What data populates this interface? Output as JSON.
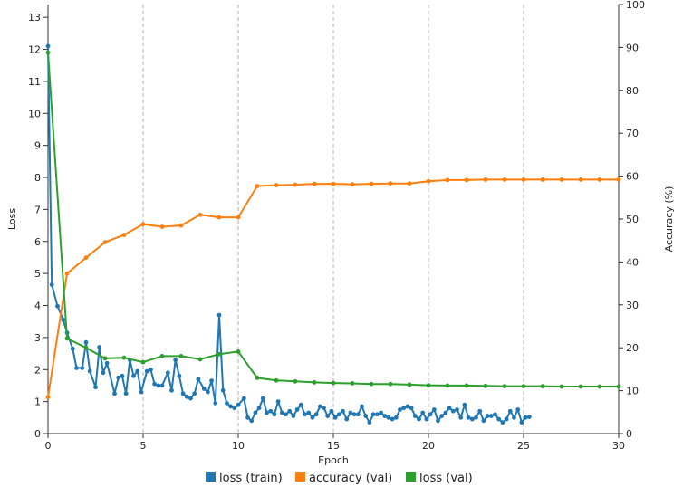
{
  "chart_data": {
    "type": "line",
    "xlabel": "Epoch",
    "ylabel": "Loss",
    "y2label": "Accuracy (%)",
    "xlim": [
      0,
      30
    ],
    "ylim": [
      0,
      13.4
    ],
    "y2lim": [
      0,
      100
    ],
    "x_ticks": [
      0,
      5,
      10,
      15,
      20,
      25,
      30
    ],
    "y_ticks": [
      0,
      1,
      2,
      3,
      4,
      5,
      6,
      7,
      8,
      9,
      10,
      11,
      12,
      13
    ],
    "y2_ticks": [
      0,
      10,
      20,
      30,
      40,
      50,
      60,
      70,
      80,
      90,
      100
    ],
    "grid": "vertical dashed lines at major x ticks",
    "legend": "bottom-center",
    "series": [
      {
        "name": "loss (train)",
        "axis": "left",
        "color": "#1f77b4",
        "values": [
          [
            0,
            12.1
          ],
          [
            0.2,
            4.65
          ],
          [
            0.5,
            3.98
          ],
          [
            0.8,
            3.55
          ],
          [
            1.0,
            3.15
          ],
          [
            1.3,
            2.65
          ],
          [
            1.5,
            2.05
          ],
          [
            1.8,
            2.05
          ],
          [
            2.0,
            2.85
          ],
          [
            2.2,
            1.95
          ],
          [
            2.5,
            1.45
          ],
          [
            2.7,
            2.7
          ],
          [
            2.9,
            1.9
          ],
          [
            3.1,
            2.2
          ],
          [
            3.5,
            1.25
          ],
          [
            3.7,
            1.75
          ],
          [
            3.9,
            1.8
          ],
          [
            4.1,
            1.25
          ],
          [
            4.3,
            2.3
          ],
          [
            4.5,
            1.8
          ],
          [
            4.7,
            1.95
          ],
          [
            4.9,
            1.3
          ],
          [
            5.2,
            1.95
          ],
          [
            5.4,
            2.0
          ],
          [
            5.6,
            1.55
          ],
          [
            5.8,
            1.5
          ],
          [
            6.0,
            1.5
          ],
          [
            6.3,
            1.9
          ],
          [
            6.5,
            1.35
          ],
          [
            6.7,
            2.3
          ],
          [
            6.9,
            1.8
          ],
          [
            7.1,
            1.25
          ],
          [
            7.3,
            1.15
          ],
          [
            7.5,
            1.1
          ],
          [
            7.7,
            1.25
          ],
          [
            7.9,
            1.7
          ],
          [
            8.2,
            1.4
          ],
          [
            8.4,
            1.3
          ],
          [
            8.6,
            1.65
          ],
          [
            8.8,
            0.95
          ],
          [
            9.0,
            3.7
          ],
          [
            9.2,
            1.35
          ],
          [
            9.4,
            0.95
          ],
          [
            9.6,
            0.85
          ],
          [
            9.8,
            0.8
          ],
          [
            10.0,
            0.9
          ],
          [
            10.3,
            1.1
          ],
          [
            10.5,
            0.5
          ],
          [
            10.7,
            0.4
          ],
          [
            10.9,
            0.65
          ],
          [
            11.1,
            0.8
          ],
          [
            11.3,
            1.1
          ],
          [
            11.5,
            0.65
          ],
          [
            11.7,
            0.7
          ],
          [
            11.9,
            0.6
          ],
          [
            12.1,
            1.0
          ],
          [
            12.3,
            0.65
          ],
          [
            12.5,
            0.6
          ],
          [
            12.7,
            0.7
          ],
          [
            12.9,
            0.55
          ],
          [
            13.1,
            0.75
          ],
          [
            13.3,
            0.9
          ],
          [
            13.5,
            0.6
          ],
          [
            13.7,
            0.65
          ],
          [
            13.9,
            0.5
          ],
          [
            14.1,
            0.6
          ],
          [
            14.3,
            0.85
          ],
          [
            14.5,
            0.8
          ],
          [
            14.7,
            0.55
          ],
          [
            14.9,
            0.7
          ],
          [
            15.1,
            0.5
          ],
          [
            15.3,
            0.6
          ],
          [
            15.5,
            0.7
          ],
          [
            15.7,
            0.45
          ],
          [
            15.9,
            0.65
          ],
          [
            16.1,
            0.6
          ],
          [
            16.3,
            0.6
          ],
          [
            16.5,
            0.85
          ],
          [
            16.7,
            0.55
          ],
          [
            16.9,
            0.35
          ],
          [
            17.1,
            0.6
          ],
          [
            17.3,
            0.6
          ],
          [
            17.5,
            0.65
          ],
          [
            17.7,
            0.55
          ],
          [
            17.9,
            0.5
          ],
          [
            18.1,
            0.45
          ],
          [
            18.3,
            0.5
          ],
          [
            18.5,
            0.75
          ],
          [
            18.7,
            0.8
          ],
          [
            18.9,
            0.85
          ],
          [
            19.1,
            0.8
          ],
          [
            19.3,
            0.55
          ],
          [
            19.5,
            0.45
          ],
          [
            19.7,
            0.65
          ],
          [
            19.9,
            0.45
          ],
          [
            20.1,
            0.6
          ],
          [
            20.3,
            0.75
          ],
          [
            20.5,
            0.4
          ],
          [
            20.7,
            0.55
          ],
          [
            20.9,
            0.65
          ],
          [
            21.1,
            0.8
          ],
          [
            21.3,
            0.7
          ],
          [
            21.5,
            0.75
          ],
          [
            21.7,
            0.5
          ],
          [
            21.9,
            0.9
          ],
          [
            22.1,
            0.5
          ],
          [
            22.3,
            0.45
          ],
          [
            22.5,
            0.5
          ],
          [
            22.7,
            0.7
          ],
          [
            22.9,
            0.4
          ],
          [
            23.1,
            0.55
          ],
          [
            23.3,
            0.55
          ],
          [
            23.5,
            0.6
          ],
          [
            23.7,
            0.45
          ],
          [
            23.9,
            0.35
          ],
          [
            24.1,
            0.45
          ],
          [
            24.3,
            0.7
          ],
          [
            24.5,
            0.5
          ],
          [
            24.7,
            0.75
          ],
          [
            24.9,
            0.35
          ],
          [
            25.1,
            0.5
          ],
          [
            25.3,
            0.52
          ]
        ]
      },
      {
        "name": "accuracy (val)",
        "axis": "right",
        "color": "#ff7f0e",
        "values": [
          [
            0,
            8.5
          ],
          [
            1,
            37.3
          ],
          [
            2,
            41.0
          ],
          [
            3,
            44.6
          ],
          [
            4,
            46.3
          ],
          [
            5,
            48.8
          ],
          [
            6,
            48.2
          ],
          [
            7,
            48.5
          ],
          [
            8,
            51.0
          ],
          [
            9,
            50.4
          ],
          [
            10,
            50.4
          ],
          [
            11,
            57.7
          ],
          [
            12,
            57.9
          ],
          [
            13,
            58.0
          ],
          [
            14,
            58.2
          ],
          [
            15,
            58.2
          ],
          [
            16,
            58.1
          ],
          [
            17,
            58.2
          ],
          [
            18,
            58.3
          ],
          [
            19,
            58.3
          ],
          [
            20,
            58.8
          ],
          [
            21,
            59.1
          ],
          [
            22,
            59.1
          ],
          [
            23,
            59.2
          ],
          [
            24,
            59.2
          ],
          [
            25,
            59.2
          ],
          [
            26,
            59.2
          ],
          [
            27,
            59.2
          ],
          [
            28,
            59.2
          ],
          [
            29,
            59.2
          ],
          [
            30,
            59.2
          ]
        ]
      },
      {
        "name": "loss (val)",
        "axis": "left",
        "color": "#2ca02c",
        "values": [
          [
            0,
            11.9
          ],
          [
            1,
            2.97
          ],
          [
            2,
            2.68
          ],
          [
            3,
            2.35
          ],
          [
            4,
            2.37
          ],
          [
            5,
            2.23
          ],
          [
            6,
            2.42
          ],
          [
            7,
            2.42
          ],
          [
            8,
            2.32
          ],
          [
            9,
            2.48
          ],
          [
            10,
            2.56
          ],
          [
            11,
            1.74
          ],
          [
            12,
            1.66
          ],
          [
            13,
            1.63
          ],
          [
            14,
            1.6
          ],
          [
            15,
            1.58
          ],
          [
            16,
            1.57
          ],
          [
            17,
            1.55
          ],
          [
            18,
            1.55
          ],
          [
            19,
            1.53
          ],
          [
            20,
            1.51
          ],
          [
            21,
            1.5
          ],
          [
            22,
            1.5
          ],
          [
            23,
            1.49
          ],
          [
            24,
            1.48
          ],
          [
            25,
            1.48
          ],
          [
            26,
            1.48
          ],
          [
            27,
            1.47
          ],
          [
            28,
            1.47
          ],
          [
            29,
            1.47
          ],
          [
            30,
            1.47
          ]
        ]
      }
    ]
  }
}
